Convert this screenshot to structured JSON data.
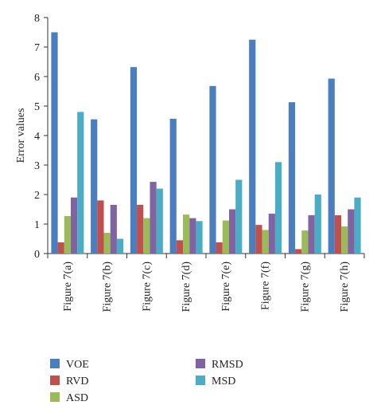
{
  "chart_data": {
    "type": "bar",
    "title": "",
    "xlabel": "",
    "ylabel": "Error values",
    "ylim": [
      0,
      8
    ],
    "yticks": [
      0,
      1,
      2,
      3,
      4,
      5,
      6,
      7,
      8
    ],
    "grid": false,
    "legend_position": "bottom",
    "categories": [
      "Figure 7(a)",
      "Figure 7(b)",
      "Figure 7(c)",
      "Figure 7(d)",
      "Figure 7(e)",
      "Figure 7(f)",
      "Figure 7(g)",
      "Figure 7(h)"
    ],
    "series": [
      {
        "name": "VOE",
        "color": "#4a7ebf",
        "values": [
          7.5,
          4.55,
          6.32,
          4.57,
          5.68,
          7.25,
          5.13,
          5.93
        ]
      },
      {
        "name": "RVD",
        "color": "#c0504d",
        "values": [
          0.38,
          1.8,
          1.65,
          0.45,
          0.38,
          0.97,
          0.15,
          1.3
        ]
      },
      {
        "name": "ASD",
        "color": "#9bbb59",
        "values": [
          1.27,
          0.7,
          1.2,
          1.32,
          1.12,
          0.8,
          0.78,
          0.92
        ]
      },
      {
        "name": "RMSD",
        "color": "#8064a2",
        "values": [
          1.9,
          1.65,
          2.43,
          1.2,
          1.5,
          1.35,
          1.3,
          1.5
        ]
      },
      {
        "name": "MSD",
        "color": "#4bacc6",
        "values": [
          4.8,
          0.5,
          2.2,
          1.1,
          2.5,
          3.1,
          2.0,
          1.9
        ]
      }
    ]
  }
}
